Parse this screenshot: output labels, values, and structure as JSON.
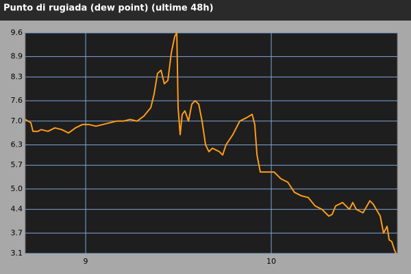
{
  "chart_data": {
    "type": "line",
    "title": "Punto di rugiada (dew point) (ultime 48h)",
    "x": [
      8.675,
      8.705,
      8.716,
      8.742,
      8.76,
      8.797,
      8.834,
      8.871,
      8.908,
      8.945,
      8.982,
      9.018,
      9.055,
      9.092,
      9.129,
      9.166,
      9.203,
      9.24,
      9.277,
      9.314,
      9.351,
      9.369,
      9.387,
      9.406,
      9.424,
      9.443,
      9.461,
      9.48,
      9.491,
      9.498,
      9.509,
      9.52,
      9.535,
      9.554,
      9.572,
      9.59,
      9.609,
      9.627,
      9.646,
      9.664,
      9.683,
      9.72,
      9.738,
      9.756,
      9.793,
      9.83,
      9.867,
      9.897,
      9.911,
      9.923,
      9.941,
      9.978,
      10.015,
      10.052,
      10.089,
      10.125,
      10.162,
      10.199,
      10.236,
      10.273,
      10.31,
      10.328,
      10.347,
      10.384,
      10.421,
      10.439,
      10.458,
      10.494,
      10.531,
      10.55,
      10.587,
      10.605,
      10.624,
      10.635,
      10.649,
      10.664,
      10.672
    ],
    "series": [
      {
        "color": "#ff9c1a",
        "values": [
          7.05,
          6.95,
          6.7,
          6.7,
          6.75,
          6.7,
          6.8,
          6.75,
          6.65,
          6.8,
          6.9,
          6.9,
          6.85,
          6.9,
          6.95,
          7.0,
          7.0,
          7.05,
          7.0,
          7.15,
          7.4,
          7.8,
          8.4,
          8.5,
          8.1,
          8.2,
          9.0,
          9.5,
          9.6,
          7.4,
          6.6,
          7.2,
          7.3,
          7.0,
          7.5,
          7.6,
          7.5,
          7.0,
          6.3,
          6.1,
          6.2,
          6.1,
          6.0,
          6.3,
          6.6,
          7.0,
          7.1,
          7.2,
          6.9,
          6.0,
          5.5,
          5.5,
          5.5,
          5.3,
          5.2,
          4.9,
          4.8,
          4.75,
          4.5,
          4.4,
          4.2,
          4.25,
          4.5,
          4.6,
          4.4,
          4.6,
          4.4,
          4.3,
          4.65,
          4.55,
          4.2,
          3.7,
          3.9,
          3.5,
          3.45,
          3.2,
          3.1
        ]
      }
    ],
    "xlim": [
      8.675,
      10.679
    ],
    "xticks": [
      9,
      10
    ],
    "ylim": [
      3.1,
      9.6
    ],
    "yticks": [
      {
        "value": 3.1,
        "label": "3.1"
      },
      {
        "value": 3.7,
        "label": "3.7"
      },
      {
        "value": 4.4,
        "label": "4.4"
      },
      {
        "value": 5.0,
        "label": "5.0"
      },
      {
        "value": 5.7,
        "label": "5.7"
      },
      {
        "value": 6.3,
        "label": "6.3"
      },
      {
        "value": 7.0,
        "label": "7.0"
      },
      {
        "value": 7.6,
        "label": "7.6"
      },
      {
        "value": 8.3,
        "label": "8.3"
      },
      {
        "value": 8.9,
        "label": "8.9"
      },
      {
        "value": 9.6,
        "label": "9.6"
      }
    ],
    "grid": true
  }
}
